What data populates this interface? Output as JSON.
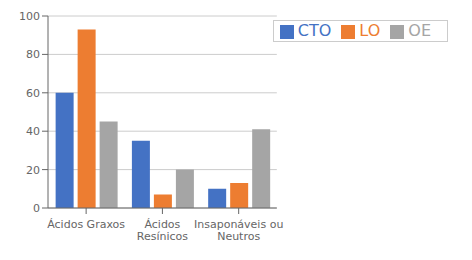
{
  "chart_data": {
    "type": "bar",
    "categories": [
      "Ácidos Graxos",
      "Ácidos\nResínicos",
      "Insaponáveis ou\nNeutros"
    ],
    "series": [
      {
        "name": "CTO",
        "color": "#4472C4",
        "values": [
          60,
          35,
          10
        ]
      },
      {
        "name": "LO",
        "color": "#ED7D31",
        "values": [
          93,
          7,
          13
        ]
      },
      {
        "name": "OE",
        "color": "#A5A5A5",
        "values": [
          45,
          20,
          41
        ]
      }
    ],
    "ylim": [
      0,
      100
    ],
    "yticks": [
      0,
      20,
      40,
      60,
      80,
      100
    ],
    "grid": true,
    "legend": "upper right"
  }
}
